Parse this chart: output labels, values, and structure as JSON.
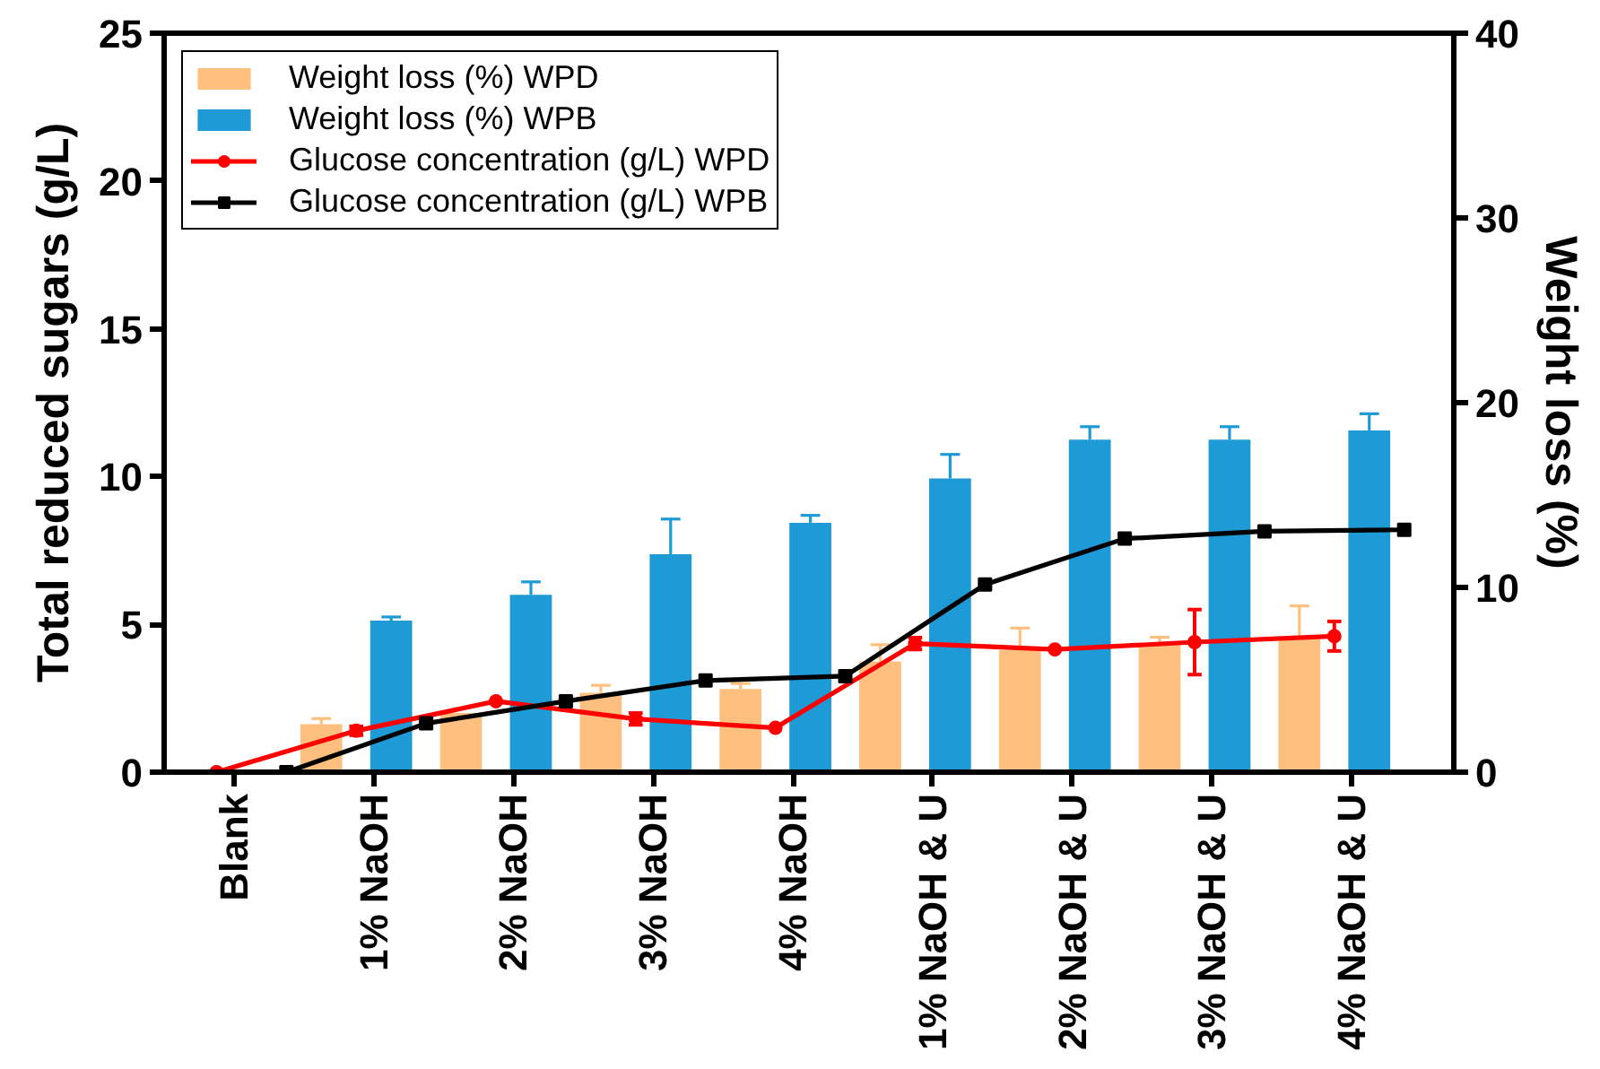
{
  "chart_data": {
    "type": "bar",
    "categories": [
      "Blank",
      "1% NaOH",
      "2% NaOH",
      "3% NaOH",
      "4% NaOH",
      "1% NaOH & U",
      "2% NaOH & U",
      "3% NaOH & U",
      "4% NaOH & U"
    ],
    "ylabel": "Total reduced sugars (g/L)",
    "y2label": "Weight loss (%)",
    "ylim": [
      0,
      25
    ],
    "yticks": [
      0,
      5,
      10,
      15,
      20,
      25
    ],
    "y2lim": [
      0,
      40
    ],
    "y2ticks": [
      0,
      10,
      20,
      30,
      40
    ],
    "grid": false,
    "legend": "top left",
    "series": [
      {
        "name": "Weight loss (%) WPD",
        "axis": "y2",
        "color": "#ffc07f",
        "values": [
          0,
          2.6,
          3.2,
          4.3,
          4.5,
          6.0,
          6.6,
          6.9,
          7.2
        ],
        "errors": [
          null,
          [
            2.6,
            2.9
          ],
          null,
          [
            4.3,
            4.7
          ],
          [
            4.5,
            4.8
          ],
          [
            6.0,
            6.9
          ],
          [
            6.6,
            7.8
          ],
          [
            6.9,
            7.3
          ],
          [
            7.2,
            9.0
          ]
        ]
      },
      {
        "name": "Weight loss (%) WPB",
        "axis": "y2",
        "color": "#1e9ad6",
        "values": [
          0,
          8.2,
          9.6,
          11.8,
          13.5,
          15.9,
          18.0,
          18.0,
          18.5
        ],
        "errors": [
          null,
          [
            8.2,
            8.4
          ],
          [
            9.6,
            10.3
          ],
          [
            11.8,
            13.7
          ],
          [
            13.5,
            13.9
          ],
          [
            15.9,
            17.2
          ],
          [
            18.0,
            18.7
          ],
          [
            18.0,
            18.7
          ],
          [
            18.5,
            19.4
          ]
        ]
      },
      {
        "name": "Glucose concentration (g/L) WPD",
        "type": "line",
        "color": "#ff0000",
        "marker": "circle",
        "values": [
          0,
          1.4,
          2.4,
          1.8,
          1.5,
          4.35,
          4.15,
          4.4,
          4.6
        ],
        "errors": [
          null,
          0.15,
          null,
          0.2,
          null,
          0.2,
          null,
          1.1,
          0.5
        ]
      },
      {
        "name": "Glucose concentration (g/L) WPB",
        "type": "line",
        "color": "#000000",
        "marker": "square",
        "values": [
          0,
          1.65,
          2.4,
          3.1,
          3.25,
          6.35,
          7.9,
          8.15,
          8.2
        ]
      }
    ]
  }
}
